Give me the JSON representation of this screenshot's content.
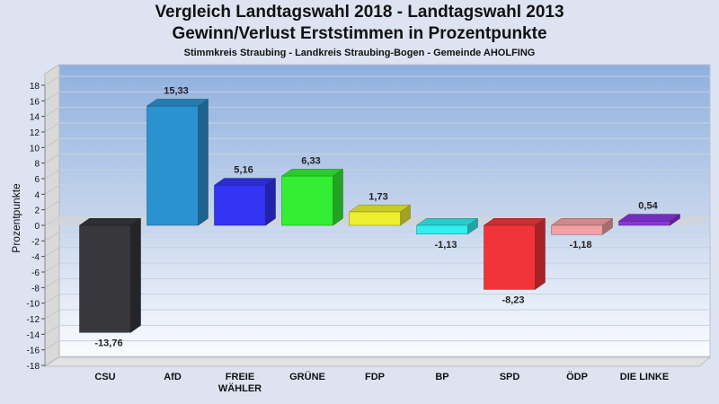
{
  "chart_data": {
    "type": "bar",
    "title": "Vergleich Landtagswahl 2018 - Landtagswahl 2013",
    "title2": "Gewinn/Verlust Erststimmen in Prozentpunkte",
    "subtitle": "Stimmkreis Straubing - Landkreis Straubing-Bogen - Gemeinde AHOLFING",
    "ylabel": "Prozentpunkte",
    "xlabel": "",
    "ylim": [
      -18,
      18
    ],
    "yticks": [
      18,
      16,
      14,
      12,
      10,
      8,
      6,
      4,
      2,
      0,
      -2,
      -4,
      -6,
      -8,
      -10,
      -12,
      -14,
      -16,
      -18
    ],
    "categories": [
      "CSU",
      "AfD",
      "FREIE WÄHLER",
      "GRÜNE",
      "FDP",
      "BP",
      "SPD",
      "ÖDP",
      "DIE LINKE"
    ],
    "category_lines": [
      [
        "CSU"
      ],
      [
        "AfD"
      ],
      [
        "FREIE",
        "WÄHLER"
      ],
      [
        "GRÜNE"
      ],
      [
        "FDP"
      ],
      [
        "BP"
      ],
      [
        "SPD"
      ],
      [
        "ÖDP"
      ],
      [
        "DIE LINKE"
      ]
    ],
    "values": [
      -13.76,
      15.33,
      5.16,
      6.33,
      1.73,
      -1.13,
      -8.23,
      -1.18,
      0.54
    ],
    "value_labels": [
      "-13,76",
      "15,33",
      "5,16",
      "6,33",
      "1,73",
      "-1,13",
      "-8,23",
      "-1,18",
      "0,54"
    ],
    "colors": [
      "#37373c",
      "#2b92d0",
      "#3434f5",
      "#33ee33",
      "#eeee30",
      "#33eeee",
      "#f23438",
      "#f3a0a4",
      "#8a35dd"
    ],
    "grid": true,
    "legend": "none"
  }
}
